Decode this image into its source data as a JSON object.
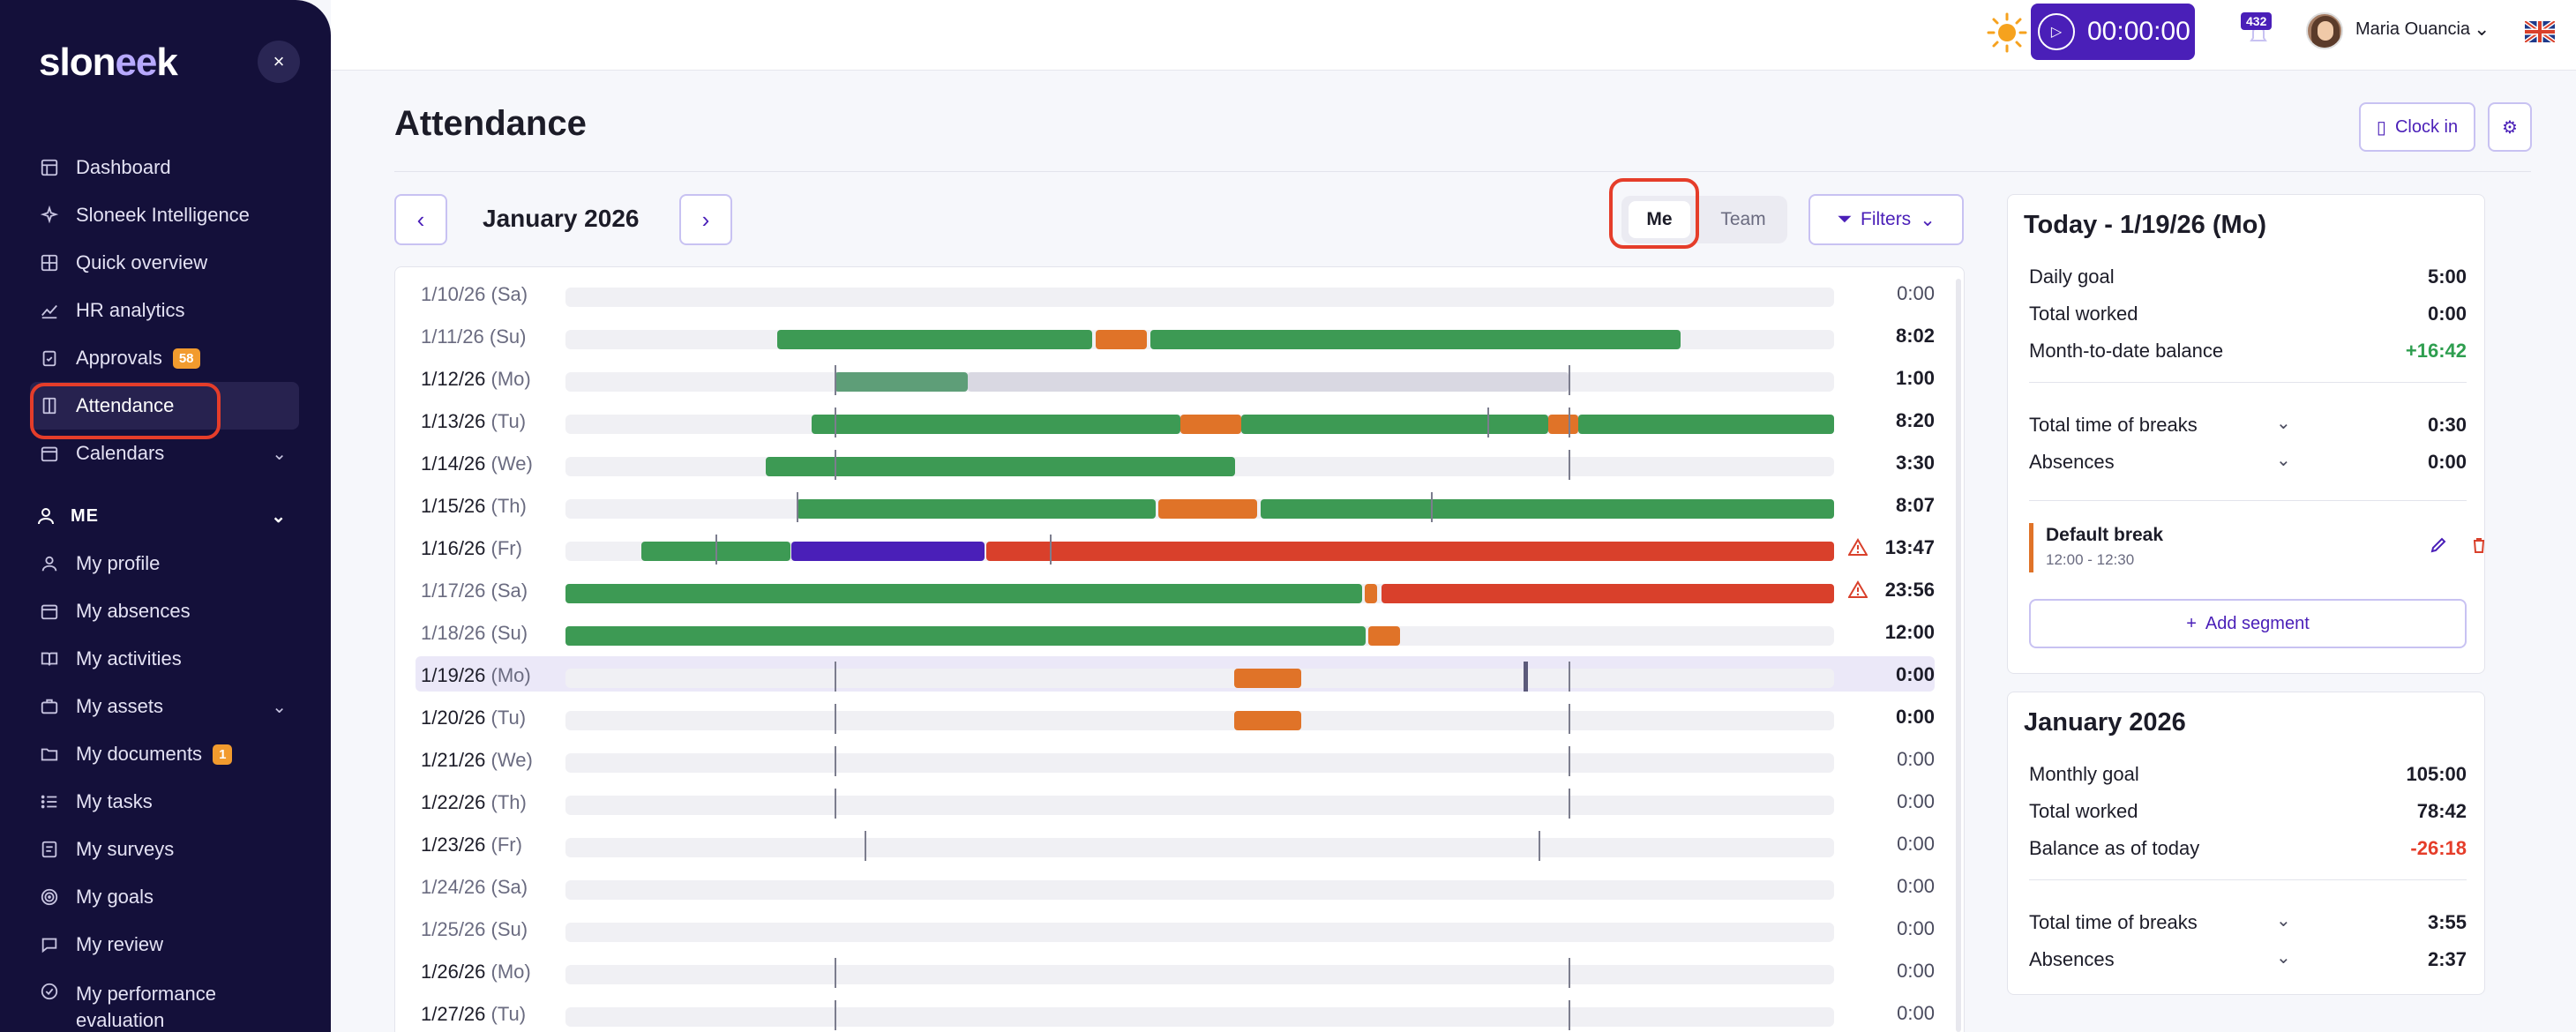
{
  "sidebar": {
    "logo": "slon",
    "logo_mid": "ee",
    "logo_end": "k",
    "close_label": "×",
    "items": [
      {
        "label": "Dashboard",
        "icon": "dashboard-icon"
      },
      {
        "label": "Sloneek Intelligence",
        "icon": "sparkles-icon"
      },
      {
        "label": "Quick overview",
        "icon": "grid-icon"
      },
      {
        "label": "HR analytics",
        "icon": "chart-icon"
      },
      {
        "label": "Approvals",
        "icon": "clipboard-icon",
        "badge": "58"
      },
      {
        "label": "Attendance",
        "icon": "attendance-icon",
        "active": true
      },
      {
        "label": "Calendars",
        "icon": "calendar-icon"
      }
    ],
    "section_me": "ME",
    "me_items": [
      {
        "label": "My profile",
        "icon": "user-icon"
      },
      {
        "label": "My absences",
        "icon": "calendar-icon"
      },
      {
        "label": "My activities",
        "icon": "book-icon"
      },
      {
        "label": "My assets",
        "icon": "briefcase-icon"
      },
      {
        "label": "My documents",
        "icon": "folder-icon",
        "badge": "1"
      },
      {
        "label": "My tasks",
        "icon": "list-icon"
      },
      {
        "label": "My surveys",
        "icon": "survey-icon"
      },
      {
        "label": "My goals",
        "icon": "target-icon"
      },
      {
        "label": "My review",
        "icon": "chat-icon"
      },
      {
        "label": "My performance",
        "label2": "evaluation",
        "icon": "performance-icon"
      }
    ]
  },
  "topbar": {
    "timer": "00:00:00",
    "notifications": "432",
    "user_name": "Maria Ouancia"
  },
  "page": {
    "title": "Attendance",
    "clock_in": "Clock in",
    "month": "January 2026",
    "toggle_me": "Me",
    "toggle_team": "Team",
    "filters": "Filters"
  },
  "rows": [
    {
      "date": "1/10/26",
      "dow": "(Sa)",
      "total": "0:00",
      "muted": true,
      "segs": [],
      "ticks": []
    },
    {
      "date": "1/11/26",
      "dow": "(Su)",
      "total": "8:02",
      "muted": true,
      "segs": [
        [
          0.167,
          0.415,
          "green"
        ],
        [
          0.418,
          0.458,
          "orange"
        ],
        [
          0.461,
          0.879,
          "green"
        ]
      ],
      "ticks": []
    },
    {
      "date": "1/12/26",
      "dow": "(Mo)",
      "total": "1:00",
      "segs": [
        [
          0.212,
          0.317,
          "darkgreen"
        ],
        [
          0.317,
          0.791,
          "lightgray"
        ]
      ],
      "ticks": [
        0.212,
        0.791
      ]
    },
    {
      "date": "1/13/26",
      "dow": "(Tu)",
      "total": "8:20",
      "segs": [
        [
          0.194,
          0.485,
          "green"
        ],
        [
          0.485,
          0.533,
          "orange"
        ],
        [
          0.533,
          0.775,
          "green"
        ],
        [
          0.775,
          0.798,
          "orange"
        ],
        [
          0.798,
          1.0,
          "green"
        ]
      ],
      "ticks": [
        0.212,
        0.727,
        0.791
      ]
    },
    {
      "date": "1/14/26",
      "dow": "(We)",
      "total": "3:30",
      "segs": [
        [
          0.158,
          0.528,
          "green"
        ]
      ],
      "ticks": [
        0.212,
        0.791
      ]
    },
    {
      "date": "1/15/26",
      "dow": "(Th)",
      "total": "8:07",
      "segs": [
        [
          0.182,
          0.465,
          "green"
        ],
        [
          0.467,
          0.545,
          "orange"
        ],
        [
          0.548,
          1.0,
          "green"
        ]
      ],
      "ticks": [
        0.182,
        0.682
      ]
    },
    {
      "date": "1/16/26",
      "dow": "(Fr)",
      "total": "13:47",
      "warn": true,
      "segs": [
        [
          0.06,
          0.177,
          "green"
        ],
        [
          0.178,
          0.33,
          "purple"
        ],
        [
          0.332,
          1.0,
          "red"
        ]
      ],
      "ticks": [
        0.118,
        0.382
      ]
    },
    {
      "date": "1/17/26",
      "dow": "(Sa)",
      "total": "23:56",
      "muted": true,
      "warn": true,
      "segs": [
        [
          0.0,
          0.628,
          "green"
        ],
        [
          0.63,
          0.64,
          "orange"
        ],
        [
          0.643,
          1.0,
          "red"
        ]
      ],
      "ticks": []
    },
    {
      "date": "1/18/26",
      "dow": "(Su)",
      "total": "12:00",
      "muted": true,
      "segs": [
        [
          0.0,
          0.631,
          "green"
        ],
        [
          0.633,
          0.658,
          "orange"
        ]
      ],
      "ticks": []
    },
    {
      "date": "1/19/26",
      "dow": "(Mo)",
      "total": "0:00",
      "highlight": true,
      "segs": [
        [
          0.527,
          0.58,
          "orange"
        ]
      ],
      "ticks": [
        0.212,
        0.791
      ],
      "now": 0.755
    },
    {
      "date": "1/20/26",
      "dow": "(Tu)",
      "total": "0:00",
      "segs": [
        [
          0.527,
          0.58,
          "orange"
        ]
      ],
      "ticks": [
        0.212,
        0.791
      ]
    },
    {
      "date": "1/21/26",
      "dow": "(We)",
      "total": "0:00",
      "segs": [],
      "ticks": [
        0.212,
        0.791
      ]
    },
    {
      "date": "1/22/26",
      "dow": "(Th)",
      "total": "0:00",
      "segs": [],
      "ticks": [
        0.212,
        0.791
      ]
    },
    {
      "date": "1/23/26",
      "dow": "(Fr)",
      "total": "0:00",
      "segs": [],
      "ticks": [
        0.236,
        0.767
      ]
    },
    {
      "date": "1/24/26",
      "dow": "(Sa)",
      "total": "0:00",
      "muted": true,
      "segs": [],
      "ticks": []
    },
    {
      "date": "1/25/26",
      "dow": "(Su)",
      "total": "0:00",
      "muted": true,
      "segs": [],
      "ticks": []
    },
    {
      "date": "1/26/26",
      "dow": "(Mo)",
      "total": "0:00",
      "segs": [],
      "ticks": [
        0.212,
        0.791
      ]
    },
    {
      "date": "1/27/26",
      "dow": "(Tu)",
      "total": "0:00",
      "segs": [],
      "ticks": [
        0.212,
        0.791
      ]
    }
  ],
  "colors": {
    "green": "#3d9a54",
    "darkgreen": "#5e9e78",
    "orange": "#e07328",
    "red": "#d9402b",
    "purple": "#4a1fb8",
    "lightgray": "#d9d8e2"
  },
  "today": {
    "title": "Today - 1/19/26 (Mo)",
    "daily_goal_label": "Daily goal",
    "daily_goal": "5:00",
    "total_worked_label": "Total worked",
    "total_worked": "0:00",
    "mtd_label": "Month-to-date balance",
    "mtd": "+16:42",
    "breaks_label": "Total time of breaks",
    "breaks": "0:30",
    "absences_label": "Absences",
    "absences": "0:00",
    "break_title": "Default break",
    "break_time": "12:00 - 12:30",
    "add_segment": "Add segment"
  },
  "month_card": {
    "title": "January 2026",
    "goal_label": "Monthly goal",
    "goal": "105:00",
    "worked_label": "Total worked",
    "worked": "78:42",
    "balance_label": "Balance as of today",
    "balance": "-26:18",
    "breaks_label": "Total time of breaks",
    "breaks": "3:55",
    "absences_label": "Absences",
    "absences": "2:37"
  }
}
